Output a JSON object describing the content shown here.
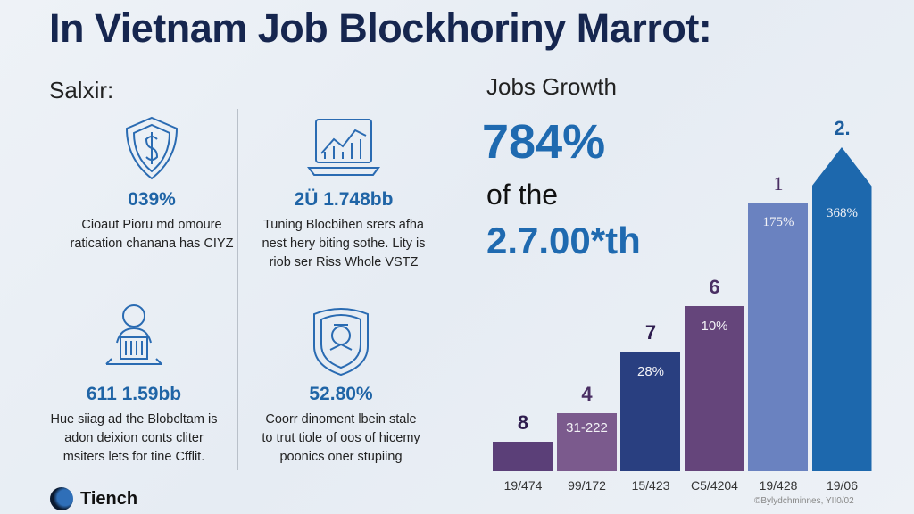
{
  "title": "In Vietnam Job Blockhoriny Marrot:",
  "left_section": {
    "heading": "Salxir:",
    "stats": [
      {
        "icon": "shield-dollar-icon",
        "value": "039%",
        "desc": [
          "Cioaut Pioru md omoure",
          "ratication chanana has CIYZ"
        ]
      },
      {
        "icon": "laptop-chart-icon",
        "value": "2Ü 1.748bb",
        "desc": [
          "Tuning Blocbihen srers afha",
          "nest hery biting sothe. Lity is",
          "riob ser Riss Whole VSTZ"
        ]
      },
      {
        "icon": "worker-laptop-icon",
        "value": "611 1.59bb",
        "desc": [
          "Hue siiag ad the Blobcltam is",
          "adon deixion conts cliter",
          "msiters lets for tine Cfflit."
        ]
      },
      {
        "icon": "badge-emblem-icon",
        "value": "52.80%",
        "desc": [
          "Coorr dinoment lbein stale",
          "to trut tiole of oos of hicemy",
          "poonics oner stupiing"
        ]
      }
    ]
  },
  "logo": {
    "text": "Tiench"
  },
  "right_section": {
    "heading": "Jobs Growth",
    "big_value": "784%",
    "of_text": "of the",
    "big_value_2": "2.7.00*th"
  },
  "chart_data": {
    "type": "bar",
    "categories": [
      "19/474",
      "99/172",
      "15/423",
      "C5/4204",
      "19/428",
      "19/06"
    ],
    "values": [
      9,
      18,
      37,
      51,
      83,
      100
    ],
    "top_labels": [
      "8",
      "4",
      "7",
      "6",
      "1",
      "2."
    ],
    "bar_labels": [
      "",
      "31-222",
      "28%",
      "10%",
      "175%",
      "368%"
    ],
    "colors": [
      "#5b3f78",
      "#7b5a8d",
      "#293f80",
      "#65457b",
      "#6a82c0",
      "#1d68ad"
    ],
    "top_label_colors": [
      "#2e1c4e",
      "#4a2f63",
      "#2e1c4e",
      "#4a2f63",
      "#4a2f63",
      "#1d5e9e"
    ],
    "last_bar_arrow": true,
    "source": "©Bylydchminnes, YII0/02"
  }
}
